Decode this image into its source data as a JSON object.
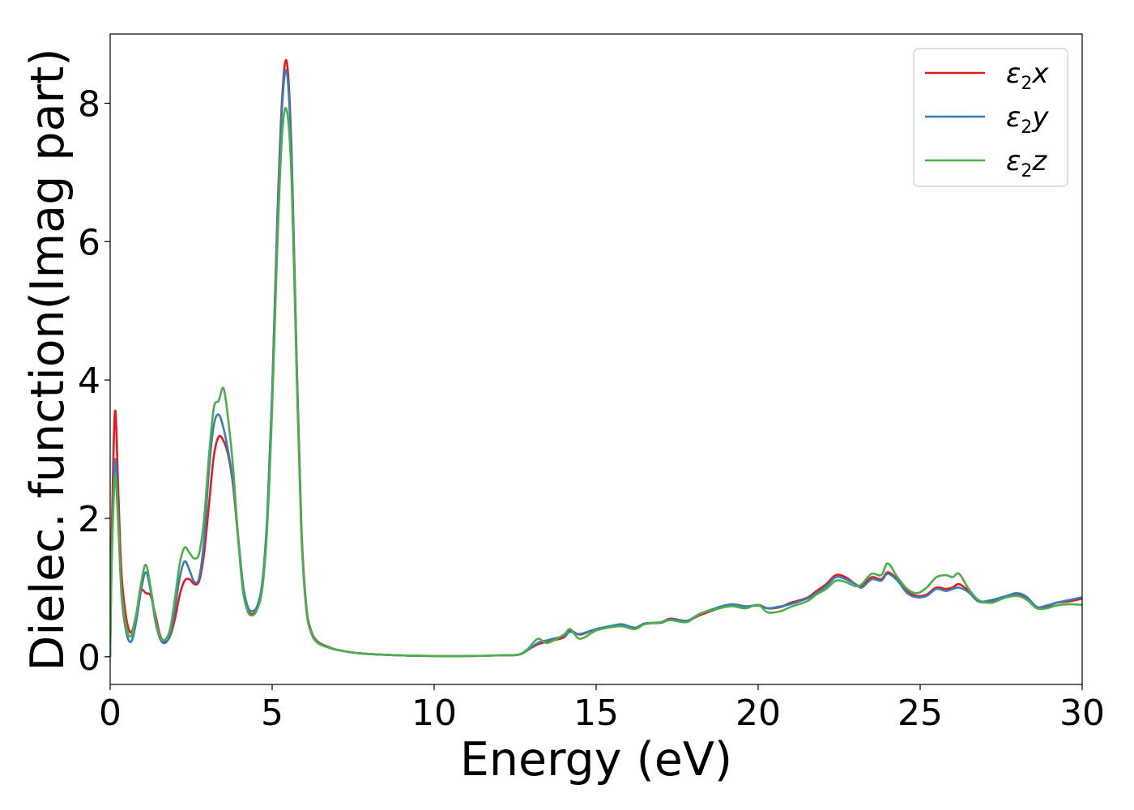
{
  "chart_data": {
    "type": "line",
    "xlabel": "Energy (eV)",
    "ylabel": "Dielec. function(Imag part)",
    "xlim": [
      0,
      30
    ],
    "ylim": [
      -0.4,
      9.0
    ],
    "xticks": [
      0,
      5,
      10,
      15,
      20,
      25,
      30
    ],
    "yticks": [
      0,
      2,
      4,
      6,
      8
    ],
    "grid": false,
    "legend_position": "top-right",
    "series": [
      {
        "name": "ε2x",
        "label_base": "ε",
        "label_sub": "2",
        "label_var": "x",
        "color": "#e41a1c",
        "x": [
          0,
          0.05,
          0.15,
          0.25,
          0.35,
          0.5,
          0.65,
          0.8,
          0.95,
          1.1,
          1.25,
          1.4,
          1.55,
          1.7,
          1.85,
          2.0,
          2.15,
          2.3,
          2.45,
          2.6,
          2.75,
          2.9,
          3.05,
          3.2,
          3.35,
          3.5,
          3.65,
          3.8,
          3.95,
          4.1,
          4.25,
          4.4,
          4.55,
          4.7,
          4.85,
          5.0,
          5.15,
          5.3,
          5.45,
          5.6,
          5.75,
          5.9,
          6.05,
          6.2,
          6.4,
          6.7,
          7.0,
          7.5,
          8,
          9,
          10,
          11,
          12,
          12.6,
          12.9,
          13.2,
          13.5,
          14,
          14.2,
          14.5,
          15,
          15.5,
          15.8,
          16.2,
          16.5,
          17,
          17.3,
          17.8,
          18.2,
          18.8,
          19.2,
          19.6,
          20,
          20.3,
          20.7,
          21,
          21.5,
          21.8,
          22.1,
          22.4,
          22.7,
          23,
          23.2,
          23.5,
          23.8,
          24,
          24.3,
          24.6,
          24.9,
          25.2,
          25.5,
          25.8,
          26,
          26.2,
          26.5,
          26.8,
          27.2,
          27.6,
          28,
          28.3,
          28.6,
          28.9,
          29.2,
          29.6,
          30
        ],
        "y": [
          0,
          1.8,
          3.55,
          2.4,
          1.2,
          0.55,
          0.35,
          0.6,
          0.95,
          0.92,
          0.88,
          0.6,
          0.3,
          0.22,
          0.3,
          0.55,
          0.9,
          1.1,
          1.12,
          1.05,
          1.1,
          1.5,
          2.2,
          2.9,
          3.18,
          3.12,
          2.9,
          2.45,
          1.7,
          1.0,
          0.68,
          0.62,
          0.72,
          1.05,
          2.0,
          3.8,
          6.2,
          8.0,
          8.6,
          7.3,
          4.4,
          1.9,
          0.75,
          0.38,
          0.22,
          0.15,
          0.1,
          0.06,
          0.04,
          0.02,
          0.01,
          0.01,
          0.02,
          0.03,
          0.1,
          0.18,
          0.22,
          0.28,
          0.38,
          0.32,
          0.4,
          0.44,
          0.45,
          0.42,
          0.48,
          0.5,
          0.55,
          0.52,
          0.6,
          0.7,
          0.74,
          0.72,
          0.75,
          0.7,
          0.72,
          0.78,
          0.85,
          0.95,
          1.05,
          1.18,
          1.15,
          1.05,
          1.02,
          1.15,
          1.12,
          1.22,
          1.12,
          0.95,
          0.88,
          0.9,
          1.0,
          0.98,
          1.0,
          1.05,
          0.95,
          0.8,
          0.8,
          0.86,
          0.9,
          0.85,
          0.72,
          0.72,
          0.78,
          0.8,
          0.84
        ]
      },
      {
        "name": "ε2y",
        "label_base": "ε",
        "label_sub": "2",
        "label_var": "y",
        "color": "#377eb8",
        "x": [
          0,
          0.05,
          0.15,
          0.25,
          0.35,
          0.5,
          0.65,
          0.8,
          0.95,
          1.1,
          1.25,
          1.4,
          1.55,
          1.7,
          1.85,
          2.0,
          2.15,
          2.3,
          2.45,
          2.6,
          2.75,
          2.9,
          3.05,
          3.2,
          3.35,
          3.5,
          3.65,
          3.8,
          3.95,
          4.1,
          4.25,
          4.4,
          4.55,
          4.7,
          4.85,
          5.0,
          5.15,
          5.3,
          5.45,
          5.6,
          5.75,
          5.9,
          6.05,
          6.2,
          6.4,
          6.7,
          7.0,
          7.5,
          8,
          9,
          10,
          11,
          12,
          12.6,
          12.9,
          13.2,
          13.5,
          14,
          14.2,
          14.5,
          15,
          15.5,
          15.8,
          16.2,
          16.5,
          17,
          17.3,
          17.8,
          18.2,
          18.8,
          19.2,
          19.6,
          20,
          20.3,
          20.7,
          21,
          21.5,
          21.8,
          22.1,
          22.4,
          22.7,
          23,
          23.2,
          23.5,
          23.8,
          24,
          24.3,
          24.6,
          24.9,
          25.2,
          25.5,
          25.8,
          26,
          26.2,
          26.5,
          26.8,
          27.2,
          27.6,
          28,
          28.3,
          28.6,
          28.9,
          29.2,
          29.6,
          30
        ],
        "y": [
          0,
          1.5,
          2.85,
          2.0,
          0.9,
          0.35,
          0.22,
          0.5,
          0.95,
          1.22,
          0.95,
          0.5,
          0.25,
          0.2,
          0.32,
          0.7,
          1.15,
          1.38,
          1.25,
          1.08,
          1.15,
          1.7,
          2.7,
          3.35,
          3.5,
          3.3,
          2.95,
          2.5,
          1.75,
          1.05,
          0.72,
          0.66,
          0.75,
          1.1,
          2.05,
          3.8,
          6.1,
          7.9,
          8.45,
          7.2,
          4.35,
          1.85,
          0.72,
          0.36,
          0.21,
          0.14,
          0.1,
          0.06,
          0.04,
          0.02,
          0.01,
          0.01,
          0.02,
          0.03,
          0.1,
          0.2,
          0.24,
          0.3,
          0.36,
          0.33,
          0.4,
          0.45,
          0.47,
          0.42,
          0.48,
          0.49,
          0.54,
          0.52,
          0.62,
          0.72,
          0.76,
          0.73,
          0.74,
          0.7,
          0.73,
          0.76,
          0.84,
          0.92,
          1.02,
          1.15,
          1.12,
          1.05,
          1.0,
          1.12,
          1.1,
          1.2,
          1.1,
          0.92,
          0.86,
          0.88,
          0.98,
          0.95,
          0.98,
          1.0,
          0.93,
          0.8,
          0.82,
          0.87,
          0.92,
          0.86,
          0.72,
          0.74,
          0.78,
          0.82,
          0.86
        ]
      },
      {
        "name": "ε2z",
        "label_base": "ε",
        "label_sub": "2",
        "label_var": "z",
        "color": "#4daf4a",
        "x": [
          0,
          0.05,
          0.15,
          0.25,
          0.35,
          0.5,
          0.65,
          0.8,
          0.95,
          1.1,
          1.25,
          1.4,
          1.55,
          1.7,
          1.85,
          2.0,
          2.15,
          2.3,
          2.45,
          2.6,
          2.75,
          2.9,
          3.05,
          3.2,
          3.35,
          3.5,
          3.65,
          3.8,
          3.95,
          4.1,
          4.25,
          4.4,
          4.55,
          4.7,
          4.85,
          5.0,
          5.15,
          5.3,
          5.45,
          5.6,
          5.75,
          5.9,
          6.05,
          6.2,
          6.4,
          6.7,
          7.0,
          7.5,
          8,
          9,
          10,
          11,
          12,
          12.6,
          12.9,
          13.2,
          13.5,
          14,
          14.2,
          14.5,
          15,
          15.5,
          15.8,
          16.2,
          16.5,
          17,
          17.3,
          17.8,
          18.2,
          18.8,
          19.2,
          19.6,
          20,
          20.3,
          20.7,
          21,
          21.5,
          21.8,
          22.1,
          22.4,
          22.7,
          23,
          23.2,
          23.5,
          23.8,
          24,
          24.3,
          24.6,
          24.9,
          25.2,
          25.5,
          25.8,
          26,
          26.2,
          26.5,
          26.8,
          27.2,
          27.6,
          28,
          28.3,
          28.6,
          28.9,
          29.2,
          29.6,
          30
        ],
        "y": [
          0,
          1.4,
          2.6,
          1.9,
          0.95,
          0.42,
          0.3,
          0.6,
          1.05,
          1.33,
          1.0,
          0.55,
          0.28,
          0.25,
          0.4,
          0.85,
          1.35,
          1.58,
          1.5,
          1.42,
          1.5,
          2.0,
          2.9,
          3.6,
          3.7,
          3.88,
          3.4,
          2.7,
          1.7,
          0.95,
          0.65,
          0.6,
          0.7,
          1.0,
          1.9,
          3.6,
          5.8,
          7.5,
          7.9,
          6.9,
          4.2,
          1.8,
          0.7,
          0.35,
          0.2,
          0.14,
          0.1,
          0.06,
          0.04,
          0.02,
          0.01,
          0.01,
          0.02,
          0.03,
          0.12,
          0.26,
          0.2,
          0.32,
          0.4,
          0.26,
          0.38,
          0.43,
          0.44,
          0.4,
          0.47,
          0.5,
          0.53,
          0.5,
          0.62,
          0.7,
          0.73,
          0.7,
          0.75,
          0.64,
          0.66,
          0.72,
          0.8,
          0.9,
          0.98,
          1.1,
          1.08,
          1.02,
          1.05,
          1.2,
          1.18,
          1.35,
          1.15,
          0.98,
          0.92,
          1.0,
          1.15,
          1.18,
          1.15,
          1.2,
          0.98,
          0.82,
          0.78,
          0.85,
          0.88,
          0.82,
          0.7,
          0.7,
          0.74,
          0.76,
          0.75
        ]
      }
    ]
  }
}
